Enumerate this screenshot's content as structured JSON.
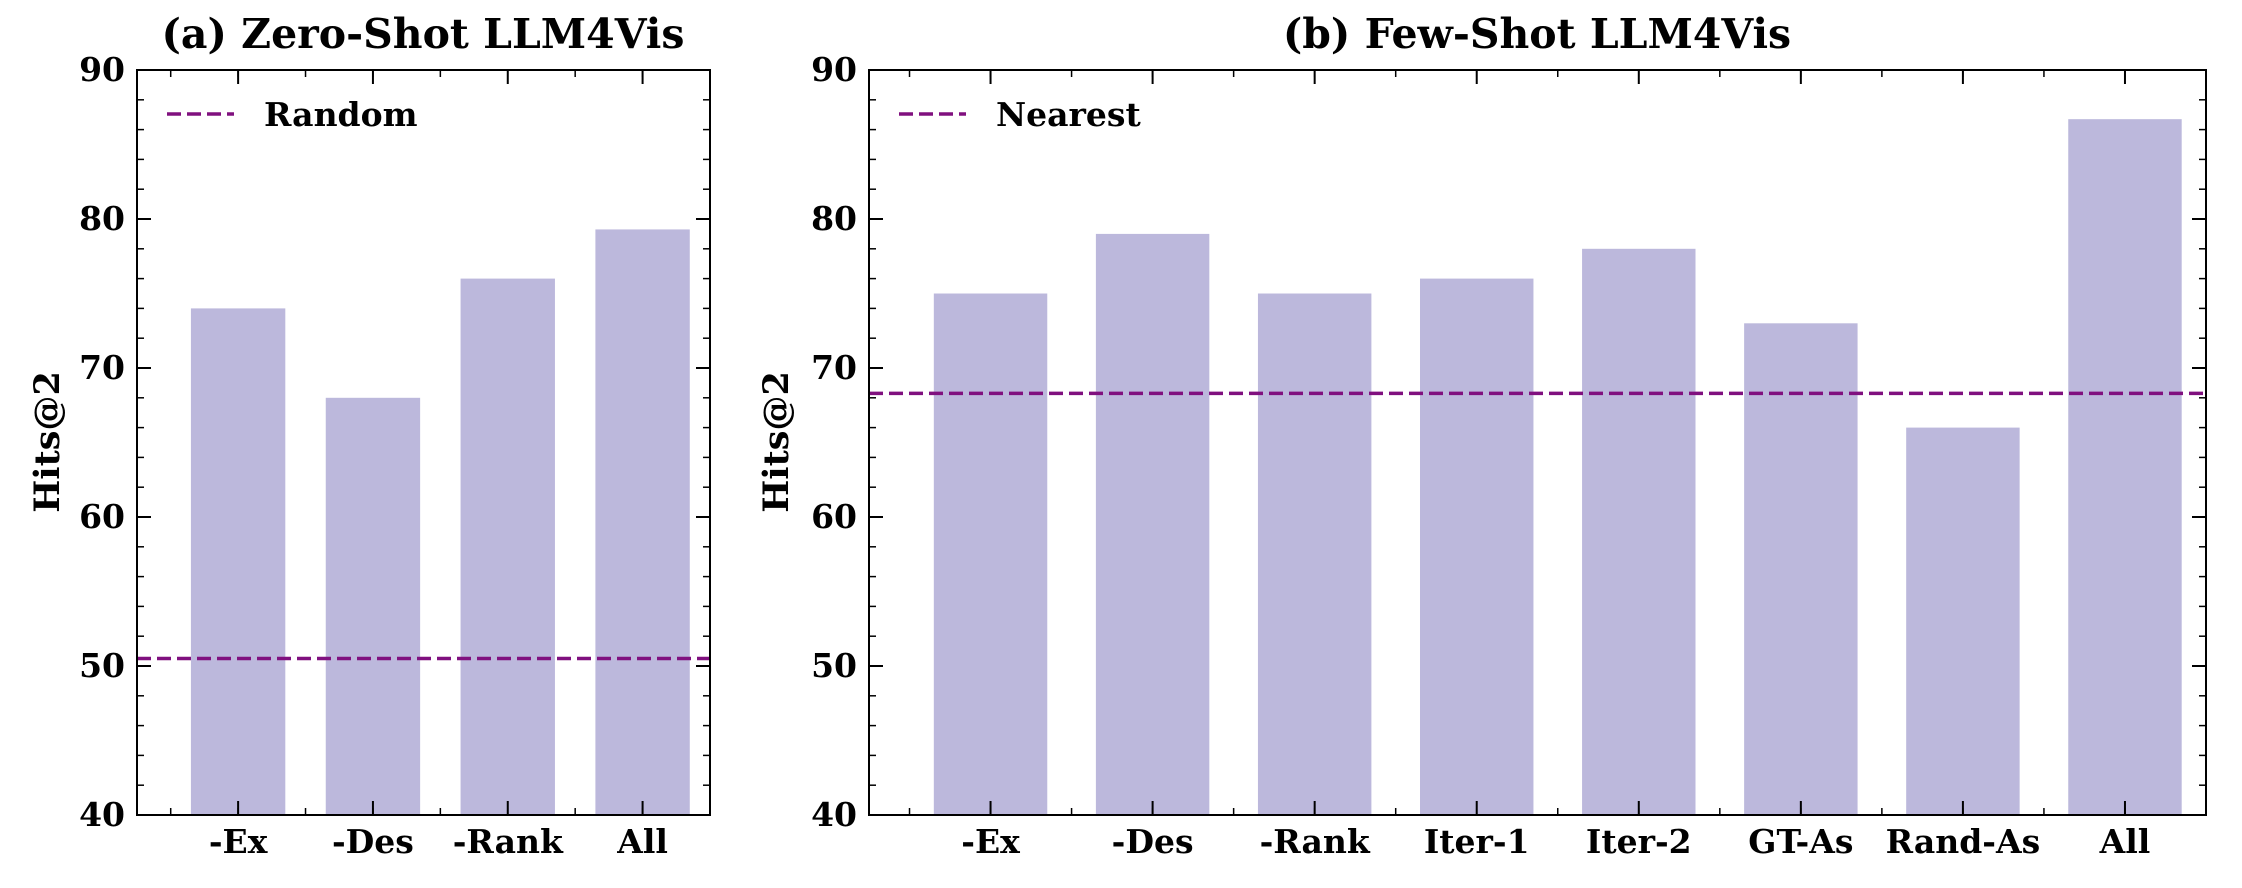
{
  "chart_data": [
    {
      "type": "bar",
      "title": "(a) Zero-Shot LLM4Vis",
      "ylabel": "Hits@2",
      "xlabel": "",
      "categories": [
        "-Ex",
        "-Des",
        "-Rank",
        "All"
      ],
      "values": [
        74,
        68,
        76,
        79.3
      ],
      "ylim": [
        40,
        90
      ],
      "yticks": [
        40,
        50,
        60,
        70,
        80,
        90
      ],
      "reference_line": {
        "name": "Random",
        "value": 50.5,
        "style": "dashed"
      },
      "legend": {
        "placement": "top-left",
        "entries": [
          "Random"
        ]
      },
      "grid": false,
      "bar_color": "#bcb8dc",
      "line_color": "#80107f"
    },
    {
      "type": "bar",
      "title": "(b) Few-Shot LLM4Vis",
      "ylabel": "Hits@2",
      "xlabel": "",
      "categories": [
        "-Ex",
        "-Des",
        "-Rank",
        "Iter-1",
        "Iter-2",
        "GT-As",
        "Rand-As",
        "All"
      ],
      "values": [
        75,
        79,
        75,
        76,
        78,
        73,
        66,
        86.7
      ],
      "ylim": [
        40,
        90
      ],
      "yticks": [
        40,
        50,
        60,
        70,
        80,
        90
      ],
      "reference_line": {
        "name": "Nearest",
        "value": 68.3,
        "style": "dashed"
      },
      "legend": {
        "placement": "top-left",
        "entries": [
          "Nearest"
        ]
      },
      "grid": false,
      "bar_color": "#bcb8dc",
      "line_color": "#80107f"
    }
  ]
}
